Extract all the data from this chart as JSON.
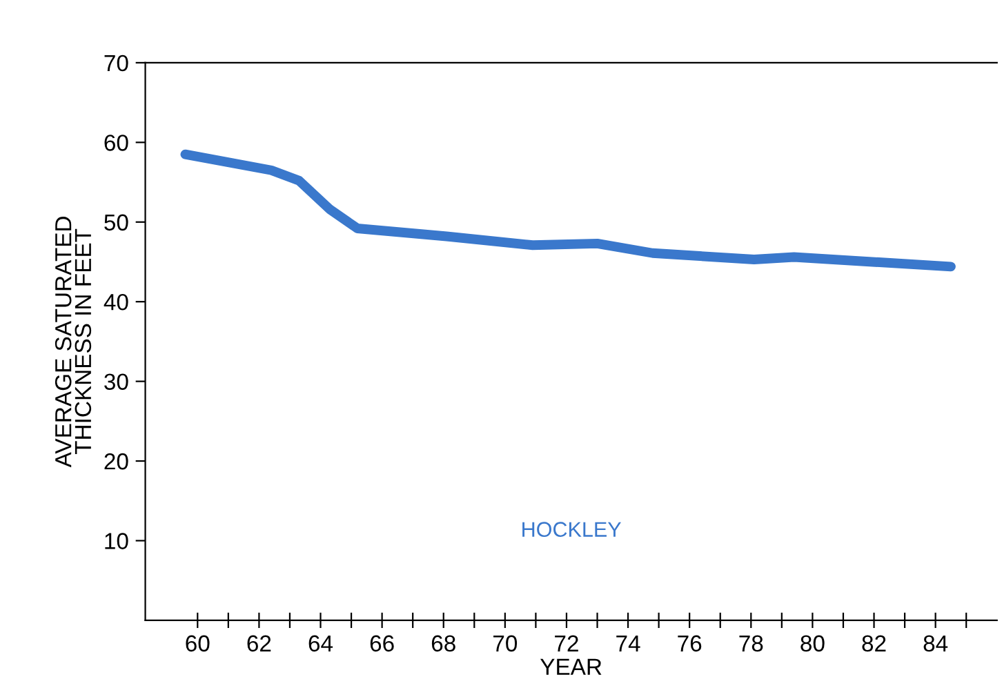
{
  "chart_data": {
    "type": "line",
    "xlabel": "YEAR",
    "ylabel": "AVERAGE SATURATED\nTHICKNESS IN FEET",
    "xlim": [
      58.3,
      86
    ],
    "ylim": [
      0,
      70
    ],
    "xticks": [
      60,
      {
        "value": 61,
        "label": null
      },
      62,
      {
        "value": 63,
        "label": null
      },
      64,
      {
        "value": 65,
        "label": null
      },
      66,
      {
        "value": 67,
        "label": null
      },
      68,
      {
        "value": 69,
        "label": null
      },
      70,
      {
        "value": 71,
        "label": null
      },
      72,
      {
        "value": 73,
        "label": null
      },
      74,
      {
        "value": 75,
        "label": null
      },
      76,
      {
        "value": 77,
        "label": null
      },
      78,
      {
        "value": 79,
        "label": null
      },
      80,
      {
        "value": 81,
        "label": null
      },
      82,
      {
        "value": 83,
        "label": null
      },
      84,
      {
        "value": 85,
        "label": null
      }
    ],
    "yticks": [
      10,
      20,
      30,
      40,
      50,
      60,
      70
    ],
    "grid": false,
    "legend": false,
    "marker": "none",
    "line_style": "solid",
    "series": [
      {
        "name": "HOCKLEY",
        "color": "#3a78cc",
        "x": [
          59.6,
          62.4,
          63.3,
          64.3,
          65.2,
          68.1,
          70.9,
          73.0,
          74.8,
          78.1,
          79.4,
          84.5
        ],
        "values": [
          58.5,
          56.5,
          55.2,
          51.6,
          49.2,
          48.2,
          47.1,
          47.3,
          46.1,
          45.3,
          45.6,
          44.4
        ]
      }
    ]
  }
}
